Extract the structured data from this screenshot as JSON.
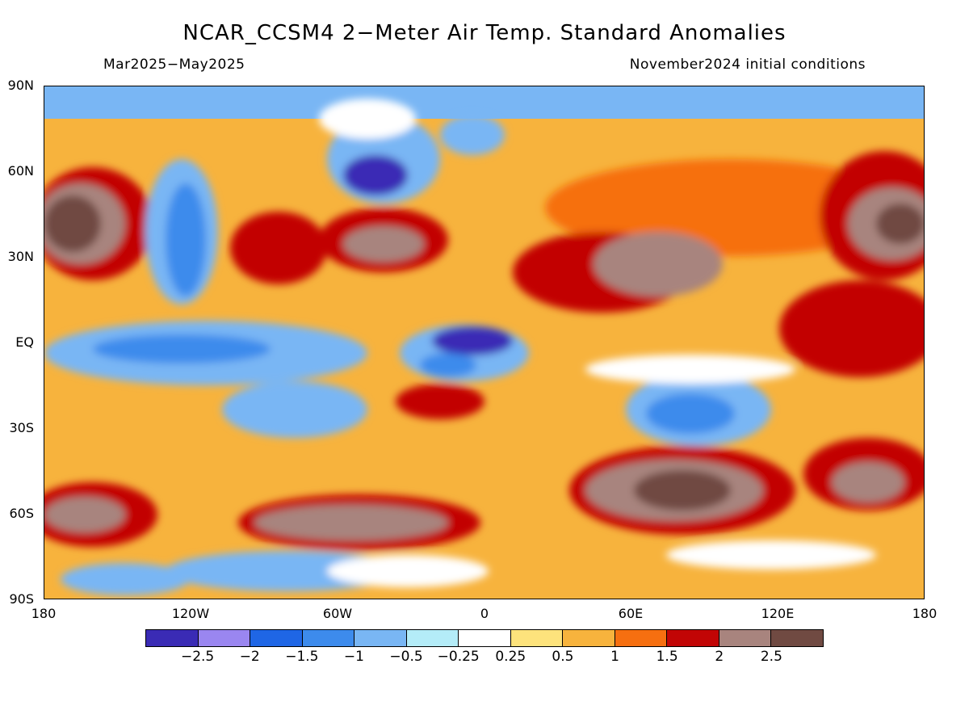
{
  "title": "NCAR_CCSM4 2−Meter Air Temp. Standard Anomalies",
  "subtitle_left": "Mar2025−May2025",
  "subtitle_right": "November2024 initial conditions",
  "lat_labels": [
    "90N",
    "60N",
    "30N",
    "EQ",
    "30S",
    "60S",
    "90S"
  ],
  "lon_labels": [
    "180",
    "120W",
    "60W",
    "0",
    "60E",
    "120E",
    "180"
  ],
  "colorbar": {
    "colors": [
      "#3a2bb5",
      "#9a86f0",
      "#1f66e5",
      "#3d8bec",
      "#79b6f4",
      "#b4ecf8",
      "#ffffff",
      "#fde37c",
      "#f7b33d",
      "#f66f10",
      "#c20505",
      "#a8847e",
      "#704a42"
    ],
    "labels": [
      "−2.5",
      "−2",
      "−1.5",
      "−1",
      "−0.5",
      "−0.25",
      "0.25",
      "0.5",
      "1",
      "1.5",
      "2",
      "2.5"
    ]
  }
}
